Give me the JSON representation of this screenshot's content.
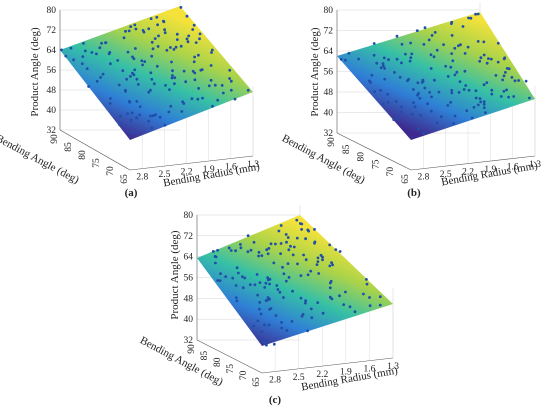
{
  "chart_data": [
    {
      "type": "scatter",
      "panel": "(a)",
      "caption": "(a)",
      "xlabel": "Bending Radius (mm)",
      "ylabel": "Bending Angle (deg)",
      "zlabel": "Product Angle (deg)",
      "x_ticks": [
        "1.3",
        "1.6",
        "1.9",
        "2.2",
        "2.5",
        "2.8"
      ],
      "y_ticks": [
        "65",
        "70",
        "75",
        "80",
        "85",
        "90"
      ],
      "z_ticks": [
        "32",
        "40",
        "48",
        "56",
        "64",
        "72",
        "80"
      ],
      "xlim": [
        1.3,
        3.0
      ],
      "ylim": [
        65,
        90
      ],
      "zlim": [
        32,
        80
      ],
      "surface": "fitted plane, parula colormap",
      "grid": true,
      "seed": 11
    },
    {
      "type": "scatter",
      "panel": "(b)",
      "caption": "(b)",
      "xlabel": "Bending Radius (mm)",
      "ylabel": "Bending Angle (deg)",
      "zlabel": "Product Angle (deg)",
      "x_ticks": [
        "1.3",
        "1.6",
        "1.9",
        "2.2",
        "2.5",
        "2.8"
      ],
      "y_ticks": [
        "65",
        "70",
        "75",
        "80",
        "85",
        "90"
      ],
      "z_ticks": [
        "32",
        "40",
        "48",
        "56",
        "64",
        "72",
        "80"
      ],
      "xlim": [
        1.3,
        3.0
      ],
      "ylim": [
        65,
        90
      ],
      "zlim": [
        32,
        80
      ],
      "surface": "fitted plane, parula colormap",
      "grid": true,
      "seed": 29
    },
    {
      "type": "scatter",
      "panel": "(c)",
      "caption": "(c)",
      "xlabel": "Bending Radius (mm)",
      "ylabel": "Bending Angle (deg)",
      "zlabel": "Product Angle (deg)",
      "x_ticks": [
        "1.3",
        "1.6",
        "1.9",
        "2.2",
        "2.5",
        "2.8"
      ],
      "y_ticks": [
        "65",
        "70",
        "75",
        "80",
        "85",
        "90"
      ],
      "z_ticks": [
        "32",
        "40",
        "48",
        "56",
        "64",
        "72",
        "80"
      ],
      "xlim": [
        1.3,
        3.0
      ],
      "ylim": [
        65,
        90
      ],
      "zlim": [
        32,
        80
      ],
      "surface": "fitted plane, parula colormap",
      "grid": true,
      "seed": 47
    }
  ],
  "colors": {
    "marker": "#1f4fa8",
    "grid": "#d4d4d4",
    "axis": "#555555",
    "colormap_low": "#3e2a8f",
    "colormap_mid1": "#2f7fd6",
    "colormap_mid2": "#36c0a6",
    "colormap_mid3": "#a9d34a",
    "colormap_high": "#f4e23a"
  }
}
